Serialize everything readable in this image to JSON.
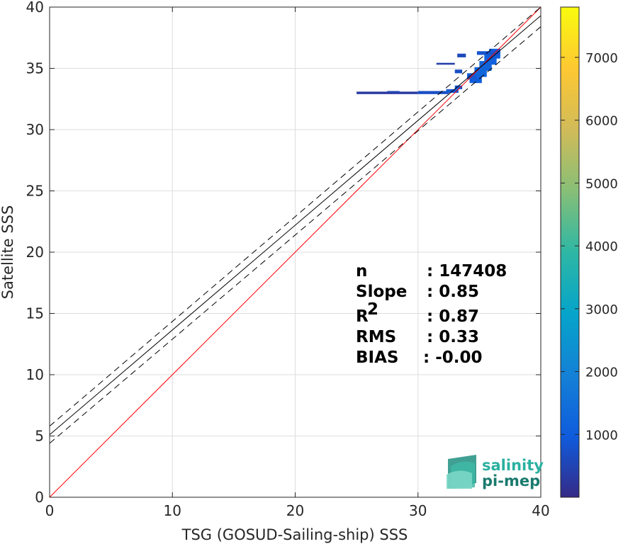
{
  "chart_data": {
    "type": "scatter",
    "subtype": "2D density histogram",
    "xlabel": "TSG (GOSUD-Sailing-ship) SSS",
    "ylabel": "Satellite SSS",
    "xlim": [
      0,
      40
    ],
    "ylim": [
      0,
      40
    ],
    "xticks": [
      0,
      10,
      20,
      30,
      40
    ],
    "yticks": [
      0,
      5,
      10,
      15,
      20,
      25,
      30,
      35,
      40
    ],
    "grid": true,
    "colorbar": {
      "range": [
        0,
        7800
      ],
      "ticks": [
        1000,
        2000,
        3000,
        4000,
        5000,
        6000,
        7000
      ],
      "colormap": "parula",
      "colors": [
        "#352a87",
        "#0f5cdd",
        "#1481d6",
        "#06a4ca",
        "#2eb7a4",
        "#87bf77",
        "#d1bb59",
        "#fec832",
        "#f9fb0e"
      ]
    },
    "lines": [
      {
        "name": "1:1",
        "style": "solid",
        "color": "#ff0000",
        "x": [
          0,
          40
        ],
        "y": [
          0,
          40
        ]
      },
      {
        "name": "fit",
        "style": "solid",
        "color": "#000000",
        "x": [
          0,
          40
        ],
        "y": [
          5.1,
          39.3
        ]
      },
      {
        "name": "fit+rms",
        "style": "dashed",
        "color": "#000000",
        "x": [
          0,
          40
        ],
        "y": [
          5.8,
          40.0
        ]
      },
      {
        "name": "fit-rms",
        "style": "dashed",
        "color": "#000000",
        "x": [
          0,
          40
        ],
        "y": [
          4.4,
          38.4
        ]
      }
    ],
    "density_cells": [
      {
        "x": 25.0,
        "y": 32.9,
        "w": 5.0,
        "h": 0.2,
        "count": 300
      },
      {
        "x": 27.5,
        "y": 33.0,
        "w": 1.0,
        "h": 0.15,
        "count": 500
      },
      {
        "x": 30.0,
        "y": 32.9,
        "w": 2.5,
        "h": 0.25,
        "count": 700
      },
      {
        "x": 32.3,
        "y": 33.0,
        "w": 1.0,
        "h": 0.3,
        "count": 900
      },
      {
        "x": 33.0,
        "y": 33.3,
        "w": 0.6,
        "h": 0.3,
        "count": 900
      },
      {
        "x": 34.2,
        "y": 33.8,
        "w": 1.0,
        "h": 0.8,
        "count": 1000
      },
      {
        "x": 34.6,
        "y": 34.3,
        "w": 1.0,
        "h": 0.8,
        "count": 1200
      },
      {
        "x": 35.0,
        "y": 34.8,
        "w": 1.0,
        "h": 0.8,
        "count": 1200
      },
      {
        "x": 35.4,
        "y": 35.3,
        "w": 1.0,
        "h": 0.8,
        "count": 1100
      },
      {
        "x": 35.8,
        "y": 35.8,
        "w": 0.9,
        "h": 0.8,
        "count": 1000
      },
      {
        "x": 34.8,
        "y": 36.1,
        "w": 1.9,
        "h": 0.3,
        "count": 800
      },
      {
        "x": 33.2,
        "y": 35.9,
        "w": 0.7,
        "h": 0.3,
        "count": 600
      },
      {
        "x": 33.0,
        "y": 34.6,
        "w": 0.6,
        "h": 0.3,
        "count": 700
      },
      {
        "x": 31.5,
        "y": 35.3,
        "w": 1.5,
        "h": 0.15,
        "count": 400
      },
      {
        "x": 34.0,
        "y": 34.1,
        "w": 0.7,
        "h": 0.5,
        "count": 900
      }
    ]
  },
  "stats": {
    "rows": [
      {
        "label": "n",
        "value": ": 147408"
      },
      {
        "label": "Slope",
        "value": ": 0.85"
      },
      {
        "label": "R",
        "sup": "2",
        "value": ": 0.87"
      },
      {
        "label": "RMS",
        "value": ": 0.33"
      },
      {
        "label": "BIAS",
        "value": ": -0.00"
      }
    ]
  },
  "logo": {
    "line1": "salinity",
    "line2": "pi-mep",
    "color1": "#2bb0a0",
    "color2": "#1a7a6e"
  }
}
